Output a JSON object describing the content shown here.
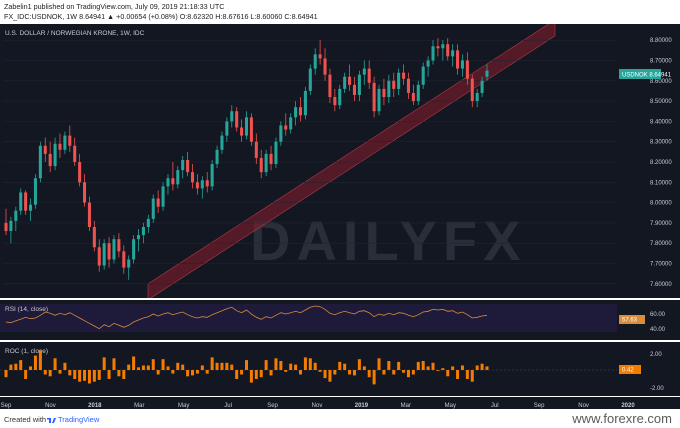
{
  "header": {
    "line1": "Zabelin1 published on TradingView.com, July 09, 2019 21:18:33 UTC",
    "line2": "FX_IDC:USDNOK, 1W  8.64941  ▲ +0.00654 (+0.08%)  O:8.62320  H:8.67616  L:8.60060  C:8.64941"
  },
  "chart_title": "U.S. DOLLAR / NORWEGIAN KRONE, 1W, IDC",
  "price_tag": "USDNOK  8.64941",
  "watermark": "DAILYFX",
  "rsi": {
    "label": "RSI (14, close)",
    "value": "57.63",
    "ticks": [
      "60.00",
      "40.00"
    ]
  },
  "roc": {
    "label": "ROC (1, close)",
    "value": "0.42",
    "ticks": [
      "2.00",
      "0.00",
      "-2.00"
    ]
  },
  "footer": {
    "created_with": "Created with",
    "brand": "TradingView",
    "site": "www.forexre.com"
  },
  "colors": {
    "bull": "#26a69a",
    "bear": "#ef5350",
    "channel": "#8b1e2b",
    "rsi_line": "#d98c3a",
    "roc_bar": "#f57c00",
    "pane_bg": "#131722"
  },
  "chart_data": {
    "type": "candlestick",
    "symbol": "USDNOK",
    "timeframe": "1W",
    "ylim": [
      7.55,
      8.85
    ],
    "y_ticks": [
      8.8,
      8.7,
      8.6,
      8.5,
      8.4,
      8.3,
      8.2,
      8.1,
      8.0,
      7.9,
      7.8,
      7.7,
      7.6
    ],
    "x_labels": [
      "Sep",
      "Nov",
      "2018",
      "Mar",
      "May",
      "Jul",
      "Sep",
      "Nov",
      "2019",
      "Mar",
      "May",
      "Jul",
      "Sep",
      "Nov",
      "2020"
    ],
    "candles": [
      {
        "o": 7.9,
        "h": 7.97,
        "l": 7.84,
        "c": 7.86
      },
      {
        "o": 7.86,
        "h": 7.93,
        "l": 7.8,
        "c": 7.91
      },
      {
        "o": 7.91,
        "h": 7.98,
        "l": 7.86,
        "c": 7.96
      },
      {
        "o": 7.96,
        "h": 8.07,
        "l": 7.94,
        "c": 8.05
      },
      {
        "o": 8.05,
        "h": 8.06,
        "l": 7.94,
        "c": 7.96
      },
      {
        "o": 7.96,
        "h": 8.02,
        "l": 7.91,
        "c": 7.99
      },
      {
        "o": 7.99,
        "h": 8.14,
        "l": 7.97,
        "c": 8.12
      },
      {
        "o": 8.12,
        "h": 8.3,
        "l": 8.1,
        "c": 8.28
      },
      {
        "o": 8.28,
        "h": 8.32,
        "l": 8.2,
        "c": 8.24
      },
      {
        "o": 8.24,
        "h": 8.3,
        "l": 8.15,
        "c": 8.18
      },
      {
        "o": 8.18,
        "h": 8.32,
        "l": 8.16,
        "c": 8.29
      },
      {
        "o": 8.29,
        "h": 8.34,
        "l": 8.22,
        "c": 8.26
      },
      {
        "o": 8.26,
        "h": 8.35,
        "l": 8.24,
        "c": 8.33
      },
      {
        "o": 8.33,
        "h": 8.38,
        "l": 8.25,
        "c": 8.28
      },
      {
        "o": 8.28,
        "h": 8.32,
        "l": 8.18,
        "c": 8.2
      },
      {
        "o": 8.2,
        "h": 8.24,
        "l": 8.08,
        "c": 8.1
      },
      {
        "o": 8.1,
        "h": 8.14,
        "l": 7.98,
        "c": 8.0
      },
      {
        "o": 8.0,
        "h": 8.03,
        "l": 7.86,
        "c": 7.88
      },
      {
        "o": 7.88,
        "h": 7.91,
        "l": 7.76,
        "c": 7.78
      },
      {
        "o": 7.78,
        "h": 7.82,
        "l": 7.66,
        "c": 7.69
      },
      {
        "o": 7.69,
        "h": 7.82,
        "l": 7.67,
        "c": 7.8
      },
      {
        "o": 7.8,
        "h": 7.83,
        "l": 7.68,
        "c": 7.72
      },
      {
        "o": 7.72,
        "h": 7.84,
        "l": 7.7,
        "c": 7.82
      },
      {
        "o": 7.82,
        "h": 7.85,
        "l": 7.73,
        "c": 7.76
      },
      {
        "o": 7.76,
        "h": 7.79,
        "l": 7.65,
        "c": 7.68
      },
      {
        "o": 7.68,
        "h": 7.74,
        "l": 7.62,
        "c": 7.72
      },
      {
        "o": 7.72,
        "h": 7.84,
        "l": 7.7,
        "c": 7.82
      },
      {
        "o": 7.82,
        "h": 7.87,
        "l": 7.76,
        "c": 7.84
      },
      {
        "o": 7.84,
        "h": 7.9,
        "l": 7.8,
        "c": 7.88
      },
      {
        "o": 7.88,
        "h": 7.94,
        "l": 7.85,
        "c": 7.92
      },
      {
        "o": 7.92,
        "h": 8.04,
        "l": 7.9,
        "c": 8.02
      },
      {
        "o": 8.02,
        "h": 8.06,
        "l": 7.95,
        "c": 7.98
      },
      {
        "o": 7.98,
        "h": 8.1,
        "l": 7.96,
        "c": 8.08
      },
      {
        "o": 8.08,
        "h": 8.14,
        "l": 8.04,
        "c": 8.12
      },
      {
        "o": 8.12,
        "h": 8.2,
        "l": 8.06,
        "c": 8.09
      },
      {
        "o": 8.09,
        "h": 8.18,
        "l": 8.07,
        "c": 8.16
      },
      {
        "o": 8.16,
        "h": 8.23,
        "l": 8.12,
        "c": 8.21
      },
      {
        "o": 8.21,
        "h": 8.25,
        "l": 8.13,
        "c": 8.15
      },
      {
        "o": 8.15,
        "h": 8.19,
        "l": 8.07,
        "c": 8.1
      },
      {
        "o": 8.1,
        "h": 8.14,
        "l": 8.04,
        "c": 8.07
      },
      {
        "o": 8.07,
        "h": 8.13,
        "l": 8.02,
        "c": 8.11
      },
      {
        "o": 8.11,
        "h": 8.15,
        "l": 8.05,
        "c": 8.08
      },
      {
        "o": 8.08,
        "h": 8.21,
        "l": 8.06,
        "c": 8.19
      },
      {
        "o": 8.19,
        "h": 8.28,
        "l": 8.17,
        "c": 8.26
      },
      {
        "o": 8.26,
        "h": 8.35,
        "l": 8.24,
        "c": 8.33
      },
      {
        "o": 8.33,
        "h": 8.42,
        "l": 8.3,
        "c": 8.4
      },
      {
        "o": 8.4,
        "h": 8.48,
        "l": 8.37,
        "c": 8.45
      },
      {
        "o": 8.45,
        "h": 8.47,
        "l": 8.35,
        "c": 8.37
      },
      {
        "o": 8.37,
        "h": 8.41,
        "l": 8.3,
        "c": 8.33
      },
      {
        "o": 8.33,
        "h": 8.45,
        "l": 8.31,
        "c": 8.42
      },
      {
        "o": 8.42,
        "h": 8.44,
        "l": 8.28,
        "c": 8.3
      },
      {
        "o": 8.3,
        "h": 8.34,
        "l": 8.19,
        "c": 8.22
      },
      {
        "o": 8.22,
        "h": 8.26,
        "l": 8.12,
        "c": 8.15
      },
      {
        "o": 8.15,
        "h": 8.26,
        "l": 8.13,
        "c": 8.24
      },
      {
        "o": 8.24,
        "h": 8.28,
        "l": 8.16,
        "c": 8.19
      },
      {
        "o": 8.19,
        "h": 8.32,
        "l": 8.17,
        "c": 8.3
      },
      {
        "o": 8.3,
        "h": 8.4,
        "l": 8.28,
        "c": 8.38
      },
      {
        "o": 8.38,
        "h": 8.44,
        "l": 8.33,
        "c": 8.36
      },
      {
        "o": 8.36,
        "h": 8.44,
        "l": 8.34,
        "c": 8.42
      },
      {
        "o": 8.42,
        "h": 8.5,
        "l": 8.38,
        "c": 8.47
      },
      {
        "o": 8.47,
        "h": 8.52,
        "l": 8.4,
        "c": 8.43
      },
      {
        "o": 8.43,
        "h": 8.57,
        "l": 8.41,
        "c": 8.55
      },
      {
        "o": 8.55,
        "h": 8.68,
        "l": 8.53,
        "c": 8.66
      },
      {
        "o": 8.66,
        "h": 8.76,
        "l": 8.63,
        "c": 8.73
      },
      {
        "o": 8.73,
        "h": 8.8,
        "l": 8.68,
        "c": 8.71
      },
      {
        "o": 8.71,
        "h": 8.76,
        "l": 8.6,
        "c": 8.63
      },
      {
        "o": 8.63,
        "h": 8.66,
        "l": 8.49,
        "c": 8.52
      },
      {
        "o": 8.52,
        "h": 8.56,
        "l": 8.45,
        "c": 8.48
      },
      {
        "o": 8.48,
        "h": 8.58,
        "l": 8.46,
        "c": 8.56
      },
      {
        "o": 8.56,
        "h": 8.64,
        "l": 8.54,
        "c": 8.62
      },
      {
        "o": 8.62,
        "h": 8.68,
        "l": 8.55,
        "c": 8.58
      },
      {
        "o": 8.58,
        "h": 8.62,
        "l": 8.5,
        "c": 8.53
      },
      {
        "o": 8.53,
        "h": 8.65,
        "l": 8.5,
        "c": 8.63
      },
      {
        "o": 8.63,
        "h": 8.7,
        "l": 8.58,
        "c": 8.66
      },
      {
        "o": 8.66,
        "h": 8.7,
        "l": 8.56,
        "c": 8.59
      },
      {
        "o": 8.59,
        "h": 8.62,
        "l": 8.42,
        "c": 8.45
      },
      {
        "o": 8.45,
        "h": 8.58,
        "l": 8.43,
        "c": 8.56
      },
      {
        "o": 8.56,
        "h": 8.61,
        "l": 8.48,
        "c": 8.52
      },
      {
        "o": 8.52,
        "h": 8.63,
        "l": 8.49,
        "c": 8.6
      },
      {
        "o": 8.6,
        "h": 8.64,
        "l": 8.52,
        "c": 8.56
      },
      {
        "o": 8.56,
        "h": 8.66,
        "l": 8.53,
        "c": 8.64
      },
      {
        "o": 8.64,
        "h": 8.68,
        "l": 8.58,
        "c": 8.61
      },
      {
        "o": 8.61,
        "h": 8.64,
        "l": 8.51,
        "c": 8.54
      },
      {
        "o": 8.54,
        "h": 8.58,
        "l": 8.48,
        "c": 8.5
      },
      {
        "o": 8.5,
        "h": 8.6,
        "l": 8.48,
        "c": 8.58
      },
      {
        "o": 8.58,
        "h": 8.69,
        "l": 8.56,
        "c": 8.67
      },
      {
        "o": 8.67,
        "h": 8.72,
        "l": 8.62,
        "c": 8.7
      },
      {
        "o": 8.7,
        "h": 8.8,
        "l": 8.68,
        "c": 8.77
      },
      {
        "o": 8.77,
        "h": 8.81,
        "l": 8.72,
        "c": 8.76
      },
      {
        "o": 8.76,
        "h": 8.8,
        "l": 8.7,
        "c": 8.78
      },
      {
        "o": 8.78,
        "h": 8.81,
        "l": 8.7,
        "c": 8.72
      },
      {
        "o": 8.72,
        "h": 8.78,
        "l": 8.67,
        "c": 8.75
      },
      {
        "o": 8.75,
        "h": 8.78,
        "l": 8.63,
        "c": 8.66
      },
      {
        "o": 8.66,
        "h": 8.73,
        "l": 8.62,
        "c": 8.7
      },
      {
        "o": 8.7,
        "h": 8.74,
        "l": 8.58,
        "c": 8.61
      },
      {
        "o": 8.61,
        "h": 8.63,
        "l": 8.47,
        "c": 8.5
      },
      {
        "o": 8.5,
        "h": 8.56,
        "l": 8.47,
        "c": 8.54
      },
      {
        "o": 8.54,
        "h": 8.62,
        "l": 8.52,
        "c": 8.6
      },
      {
        "o": 8.62,
        "h": 8.68,
        "l": 8.6,
        "c": 8.65
      }
    ],
    "rsi_values": [
      48,
      47,
      50,
      52,
      55,
      53,
      54,
      58,
      63,
      61,
      58,
      61,
      59,
      62,
      58,
      54,
      50,
      46,
      42,
      38,
      44,
      41,
      46,
      43,
      40,
      43,
      48,
      51,
      54,
      56,
      60,
      57,
      60,
      62,
      59,
      61,
      63,
      59,
      56,
      54,
      56,
      55,
      59,
      62,
      65,
      68,
      70,
      65,
      62,
      66,
      60,
      55,
      52,
      56,
      54,
      58,
      62,
      60,
      62,
      64,
      62,
      66,
      70,
      72,
      71,
      67,
      61,
      59,
      62,
      64,
      62,
      60,
      64,
      65,
      62,
      56,
      60,
      58,
      61,
      59,
      62,
      61,
      58,
      56,
      59,
      63,
      64,
      67,
      66,
      67,
      64,
      65,
      61,
      63,
      59,
      54,
      55,
      57,
      58
    ],
    "roc_values": [
      -0.8,
      0.6,
      0.7,
      1.1,
      -1.0,
      0.4,
      1.6,
      2.2,
      -0.5,
      -0.7,
      1.3,
      -0.4,
      0.8,
      -0.6,
      -1.0,
      -1.3,
      -1.2,
      -1.5,
      -1.3,
      -1.1,
      1.4,
      -1.0,
      1.3,
      -0.7,
      -1.0,
      0.6,
      1.5,
      0.3,
      0.5,
      0.5,
      1.2,
      -0.5,
      1.2,
      0.4,
      -0.4,
      0.8,
      0.6,
      -0.7,
      -0.6,
      -0.4,
      0.5,
      -0.4,
      1.4,
      0.8,
      0.8,
      0.8,
      0.6,
      -1.0,
      -0.5,
      1.1,
      -1.4,
      -1.0,
      -0.8,
      1.1,
      -0.6,
      1.3,
      1.0,
      -0.2,
      0.7,
      0.6,
      -0.5,
      1.4,
      1.3,
      0.8,
      -0.2,
      -0.9,
      -1.3,
      -0.5,
      0.9,
      0.7,
      -0.5,
      -0.6,
      1.2,
      0.4,
      -0.8,
      -1.6,
      1.3,
      -0.5,
      1.0,
      -0.5,
      0.9,
      -0.3,
      -0.8,
      -0.5,
      0.9,
      1.0,
      0.4,
      0.8,
      -0.1,
      0.2,
      -0.7,
      0.4,
      -1.0,
      0.5,
      -1.0,
      -1.3,
      0.5,
      0.7,
      0.4
    ]
  }
}
